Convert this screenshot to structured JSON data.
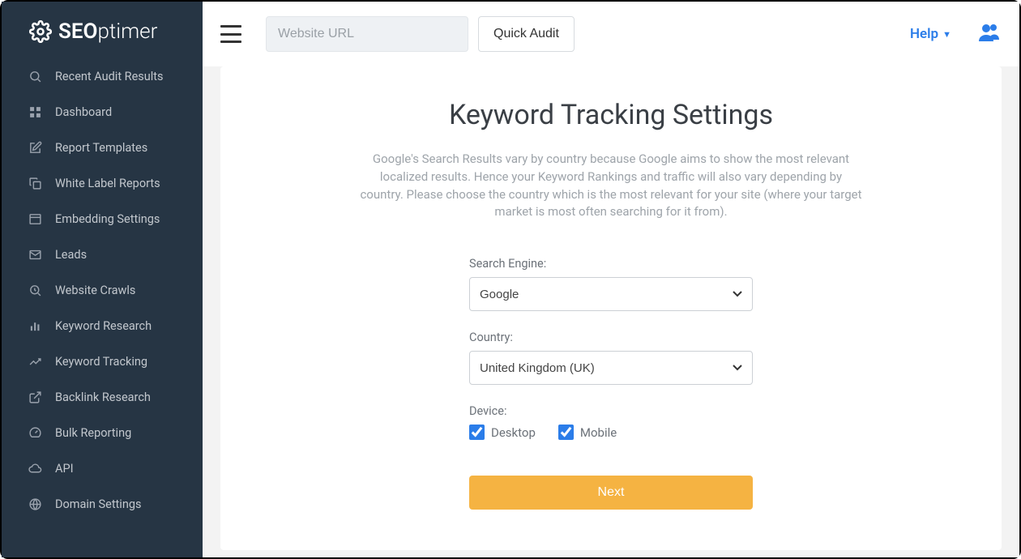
{
  "brand": {
    "name_bold": "SEO",
    "name_thin": "ptimer"
  },
  "sidebar": {
    "items": [
      {
        "label": "Recent Audit Results",
        "icon": "search"
      },
      {
        "label": "Dashboard",
        "icon": "grid"
      },
      {
        "label": "Report Templates",
        "icon": "edit"
      },
      {
        "label": "White Label Reports",
        "icon": "copy"
      },
      {
        "label": "Embedding Settings",
        "icon": "embed"
      },
      {
        "label": "Leads",
        "icon": "mail"
      },
      {
        "label": "Website Crawls",
        "icon": "crawl"
      },
      {
        "label": "Keyword Research",
        "icon": "chart"
      },
      {
        "label": "Keyword Tracking",
        "icon": "trend"
      },
      {
        "label": "Backlink Research",
        "icon": "external"
      },
      {
        "label": "Bulk Reporting",
        "icon": "gauge"
      },
      {
        "label": "API",
        "icon": "cloud"
      },
      {
        "label": "Domain Settings",
        "icon": "globe"
      }
    ]
  },
  "topbar": {
    "url_placeholder": "Website URL",
    "quick_audit_label": "Quick Audit",
    "help_label": "Help"
  },
  "page": {
    "title": "Keyword Tracking Settings",
    "description": "Google's Search Results vary by country because Google aims to show the most relevant localized results. Hence your Keyword Rankings and traffic will also vary depending by country. Please choose the country which is the most relevant for your site (where your target market is most often searching for it from).",
    "search_engine_label": "Search Engine:",
    "search_engine_value": "Google",
    "country_label": "Country:",
    "country_value": "United Kingdom (UK)",
    "device_label": "Device:",
    "device_desktop_label": "Desktop",
    "device_desktop_checked": true,
    "device_mobile_label": "Mobile",
    "device_mobile_checked": true,
    "next_label": "Next"
  },
  "colors": {
    "sidebar_bg": "#263544",
    "accent_blue": "#2b7de9",
    "accent_orange": "#f5b342",
    "text_muted": "#9ea4aa",
    "border": "#ccd0d5"
  }
}
